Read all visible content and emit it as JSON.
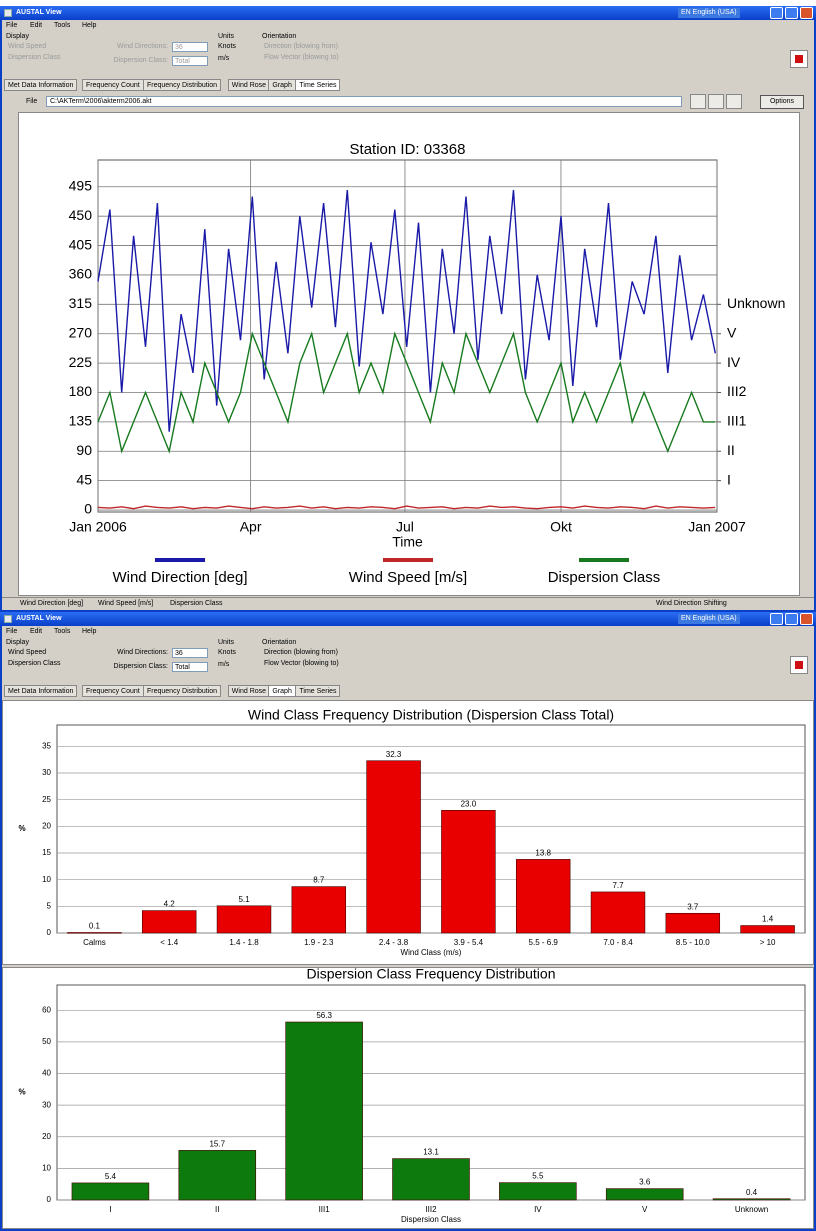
{
  "windows": [
    {
      "title": "AUSTAL View",
      "language": "EN English (USA)",
      "menu": [
        "File",
        "Edit",
        "Tools",
        "Help"
      ],
      "display": {
        "label": "Display",
        "options": [
          "Wind Speed",
          "Dispersion Class"
        ]
      },
      "wind_directions": {
        "label": "Wind Directions:",
        "value": "36"
      },
      "dispersion_class": {
        "label": "Dispersion Class:",
        "value": "Total"
      },
      "units": {
        "label": "Units",
        "options": [
          "Knots",
          "m/s"
        ]
      },
      "orientation": {
        "label": "Orientation",
        "options": [
          "Direction (blowing from)",
          "Flow Vector (blowing to)"
        ]
      },
      "tabs": [
        "Met Data Information",
        "Frequency Count",
        "Frequency Distribution",
        "Wind Rose",
        "Graph",
        "Time Series"
      ],
      "file": {
        "label": "File",
        "path": "C:\\AKTerm\\2006\\akterm2006.akt",
        "options_button": "Options"
      },
      "status": [
        "Wind Direction [deg]",
        "Wind Speed [m/s]",
        "Dispersion Class",
        "Wind Direction Shifting"
      ]
    },
    {
      "title": "AUSTAL View",
      "language": "EN English (USA)",
      "menu": [
        "File",
        "Edit",
        "Tools",
        "Help"
      ],
      "display": {
        "label": "Display",
        "options": [
          "Wind Speed",
          "Dispersion Class"
        ]
      },
      "wind_directions": {
        "label": "Wind Directions:",
        "value": "36"
      },
      "dispersion_class": {
        "label": "Dispersion Class:",
        "value": "Total"
      },
      "units": {
        "label": "Units",
        "options": [
          "Knots",
          "m/s"
        ]
      },
      "orientation": {
        "label": "Orientation",
        "options": [
          "Direction (blowing from)",
          "Flow Vector (blowing to)"
        ]
      },
      "tabs": [
        "Met Data Information",
        "Frequency Count",
        "Frequency Distribution",
        "Wind Rose",
        "Graph",
        "Time Series"
      ]
    }
  ],
  "chart_data": [
    {
      "type": "line",
      "title": "Station ID:  03368",
      "x_label": "Time",
      "x": [
        0,
        7,
        14,
        21,
        28,
        35,
        42,
        49,
        56,
        63,
        70,
        77,
        84,
        91,
        98,
        105,
        112,
        119,
        126,
        133,
        140,
        147,
        154,
        161,
        168,
        175,
        182,
        189,
        196,
        203,
        210,
        217,
        224,
        231,
        238,
        245,
        252,
        259,
        266,
        273,
        280,
        287,
        294,
        301,
        308,
        315,
        322,
        329,
        336,
        343,
        350,
        357,
        364
      ],
      "xlim": [
        0,
        365
      ],
      "xticks": [
        {
          "value": 0,
          "label": "Jan 2006"
        },
        {
          "value": 90,
          "label": "Apr"
        },
        {
          "value": 181,
          "label": "Jul"
        },
        {
          "value": 273,
          "label": "Okt"
        },
        {
          "value": 365,
          "label": "Jan 2007"
        }
      ],
      "ylim": [
        -3,
        536
      ],
      "yticks": [
        0,
        45,
        90,
        135,
        180,
        225,
        270,
        315,
        360,
        405,
        450,
        495
      ],
      "y2lim": [
        -3,
        536
      ],
      "y2ticks": [
        {
          "value": 45,
          "label": "I"
        },
        {
          "value": 90,
          "label": "II"
        },
        {
          "value": 135,
          "label": "III1"
        },
        {
          "value": 180,
          "label": "III2"
        },
        {
          "value": 225,
          "label": "IV"
        },
        {
          "value": 270,
          "label": "V"
        },
        {
          "value": 315,
          "label": "Unknown"
        }
      ],
      "grid": true,
      "series": [
        {
          "name": "Wind Direction [deg]",
          "color": "#1a1aa8",
          "values": [
            350,
            460,
            180,
            420,
            250,
            470,
            120,
            300,
            210,
            430,
            160,
            400,
            260,
            480,
            200,
            380,
            240,
            450,
            310,
            470,
            280,
            490,
            220,
            410,
            300,
            460,
            250,
            440,
            180,
            400,
            270,
            480,
            230,
            420,
            300,
            490,
            200,
            360,
            260,
            450,
            190,
            400,
            280,
            470,
            230,
            350,
            300,
            420,
            210,
            390,
            260,
            330,
            240
          ]
        },
        {
          "name": "Wind Speed [m/s]",
          "color": "#c0262a",
          "values": [
            4,
            3,
            5,
            2,
            6,
            4,
            3,
            5,
            2,
            4,
            3,
            6,
            4,
            2,
            5,
            3,
            4,
            6,
            3,
            5,
            2,
            4,
            3,
            5,
            4,
            2,
            6,
            3,
            4,
            5,
            2,
            4,
            3,
            6,
            4,
            5,
            3,
            2,
            4,
            5,
            3,
            6,
            4,
            3,
            5,
            4,
            2,
            6,
            3,
            5,
            4,
            3,
            4
          ]
        },
        {
          "name": "Dispersion Class",
          "color": "#177a1e",
          "axis": "y2",
          "values": [
            135,
            180,
            90,
            135,
            180,
            135,
            90,
            180,
            135,
            225,
            180,
            135,
            180,
            270,
            225,
            180,
            135,
            225,
            270,
            180,
            225,
            270,
            180,
            225,
            180,
            270,
            225,
            180,
            135,
            225,
            180,
            270,
            225,
            180,
            225,
            270,
            180,
            135,
            180,
            225,
            135,
            180,
            135,
            180,
            225,
            135,
            180,
            135,
            90,
            135,
            180,
            135,
            135
          ]
        }
      ]
    },
    {
      "type": "bar",
      "title": "Wind Class Frequency Distribution (Dispersion Class Total)",
      "x_label": "Wind Class (m/s)",
      "y_label": "%",
      "categories": [
        "Calms",
        "< 1.4",
        "1.4 - 1.8",
        "1.9 - 2.3",
        "2.4 - 3.8",
        "3.9 - 5.4",
        "5.5 - 6.9",
        "7.0 - 8.4",
        "8.5 - 10.0",
        "> 10"
      ],
      "values": [
        0.1,
        4.2,
        5.1,
        8.7,
        32.3,
        23.0,
        13.8,
        7.7,
        3.7,
        1.4
      ],
      "value_labels": [
        "0.1",
        "4.2",
        "5.1",
        "8.7",
        "32.3",
        "23.0",
        "13.8",
        "7.7",
        "3.7",
        "1.4"
      ],
      "color": "#e80000",
      "ylim": [
        0,
        39
      ],
      "yticks": [
        0,
        5,
        10,
        15,
        20,
        25,
        30,
        35
      ],
      "grid": true
    },
    {
      "type": "bar",
      "title": "Dispersion Class Frequency Distribution",
      "x_label": "Dispersion Class",
      "y_label": "%",
      "categories": [
        "I",
        "II",
        "III1",
        "III2",
        "IV",
        "V",
        "Unknown"
      ],
      "values": [
        5.4,
        15.7,
        56.3,
        13.1,
        5.5,
        3.6,
        0.4
      ],
      "value_labels": [
        "5.4",
        "15.7",
        "56.3",
        "13.1",
        "5.5",
        "3.6",
        "0.4"
      ],
      "color": "#0c7a0c",
      "ylim": [
        0,
        68
      ],
      "yticks": [
        0,
        10,
        20,
        30,
        40,
        50,
        60
      ],
      "grid": true
    }
  ]
}
